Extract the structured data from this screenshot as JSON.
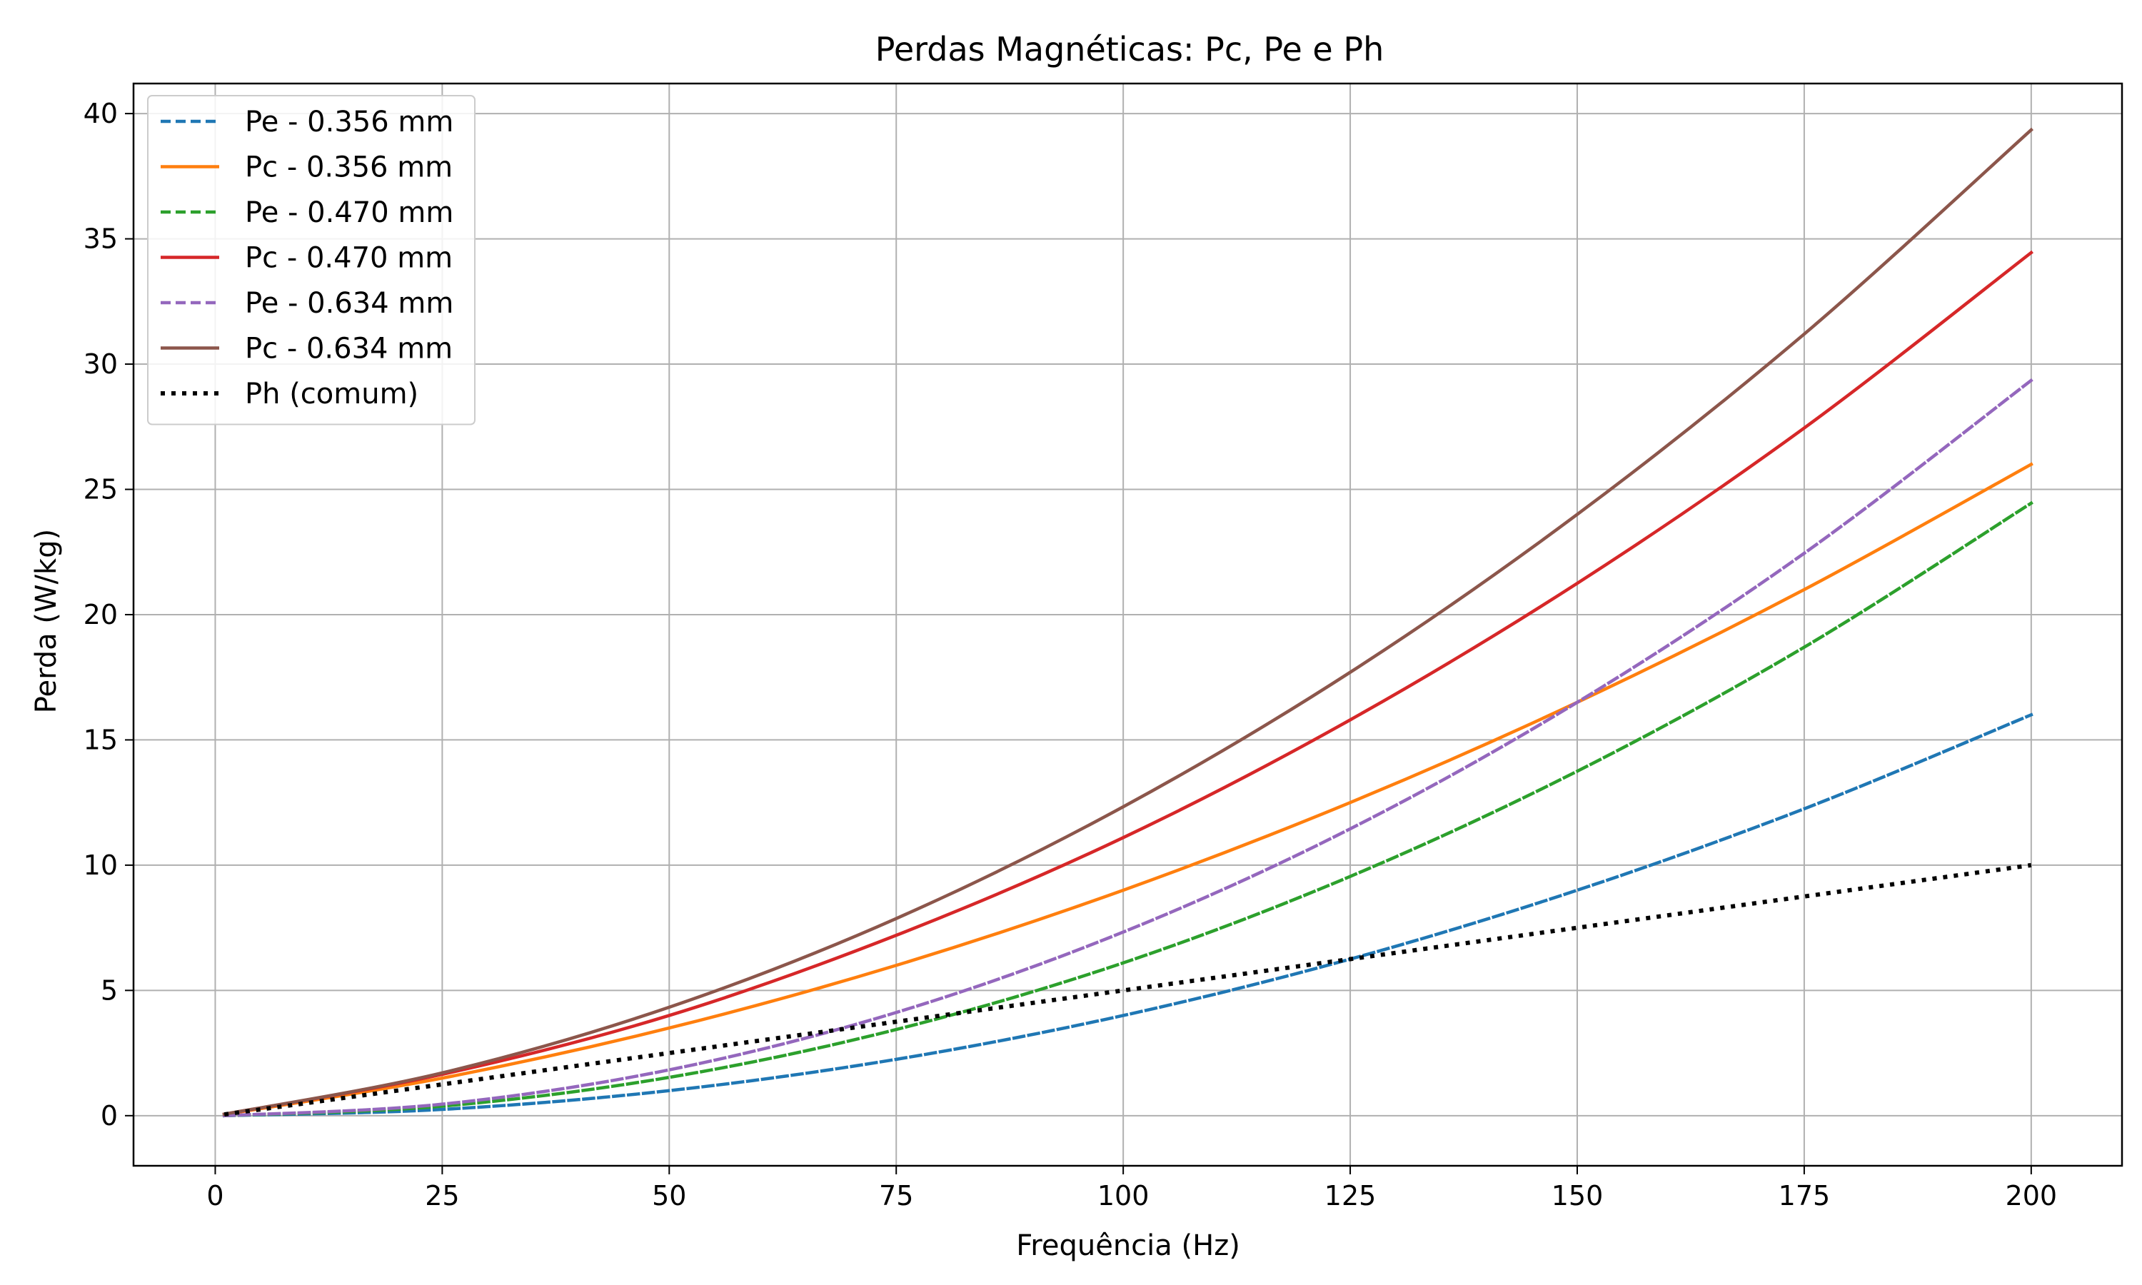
{
  "chart_data": {
    "type": "line",
    "title": "Perdas Magnéticas: Pc, Pe e Ph",
    "xlabel": "Frequência (Hz)",
    "ylabel": "Perda (W/kg)",
    "xlim": [
      -9,
      210
    ],
    "ylim": [
      -2,
      41.2
    ],
    "xticks": [
      0,
      25,
      50,
      75,
      100,
      125,
      150,
      175,
      200
    ],
    "yticks": [
      0,
      5,
      10,
      15,
      20,
      25,
      30,
      35,
      40
    ],
    "grid": true,
    "legend_position": "top-left",
    "x": [
      1,
      25,
      50,
      75,
      100,
      125,
      150,
      175,
      200
    ],
    "series": [
      {
        "name": "Pe - 0.356 mm",
        "style": "dashed",
        "color": "#1f77b4",
        "values": [
          0.0,
          0.25,
          1.0,
          2.25,
          4.0,
          6.25,
          9.0,
          12.25,
          16.0
        ]
      },
      {
        "name": "Pc - 0.356 mm",
        "style": "solid",
        "color": "#ff7f0e",
        "values": [
          0.05,
          1.5,
          3.5,
          6.0,
          9.0,
          12.5,
          16.5,
          21.0,
          26.0
        ]
      },
      {
        "name": "Pe - 0.470 mm",
        "style": "dashed",
        "color": "#2ca02c",
        "values": [
          0.0,
          0.38,
          1.53,
          3.44,
          6.1,
          9.55,
          13.75,
          18.7,
          24.45
        ]
      },
      {
        "name": "Pc - 0.470 mm",
        "style": "solid",
        "color": "#d62728",
        "values": [
          0.06,
          1.65,
          4.0,
          7.2,
          11.1,
          15.8,
          21.25,
          27.45,
          34.45
        ]
      },
      {
        "name": "Pe - 0.634 mm",
        "style": "dashed",
        "color": "#9467bd",
        "values": [
          0.0,
          0.46,
          1.83,
          4.12,
          7.33,
          11.45,
          16.5,
          22.45,
          29.35
        ]
      },
      {
        "name": "Pc - 0.634 mm",
        "style": "solid",
        "color": "#8c564b",
        "values": [
          0.06,
          1.71,
          4.33,
          7.87,
          12.33,
          17.7,
          24.0,
          31.2,
          39.35
        ]
      },
      {
        "name": "Ph (comum)",
        "style": "dotted",
        "color": "#000000",
        "values": [
          0.05,
          1.25,
          2.5,
          3.75,
          5.0,
          6.25,
          7.5,
          8.75,
          10.0
        ]
      }
    ]
  }
}
